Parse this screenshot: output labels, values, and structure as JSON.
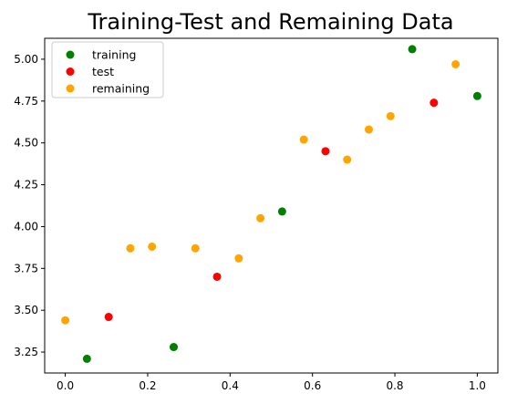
{
  "chart_data": {
    "type": "scatter",
    "title": "Training-Test and Remaining Data",
    "xlabel": "",
    "ylabel": "",
    "xlim": [
      -0.05,
      1.05
    ],
    "ylim": [
      3.125,
      5.125
    ],
    "xticks": [
      "0.0",
      "0.2",
      "0.4",
      "0.6",
      "0.8",
      "1.0"
    ],
    "yticks": [
      "3.25",
      "3.50",
      "3.75",
      "4.00",
      "4.25",
      "4.50",
      "4.75",
      "5.00"
    ],
    "grid": false,
    "legend_position": "top-left",
    "series": [
      {
        "name": "training",
        "color": "#008000",
        "points": [
          {
            "x": 0.0526,
            "y": 3.21
          },
          {
            "x": 0.2632,
            "y": 3.28
          },
          {
            "x": 0.5263,
            "y": 4.09
          },
          {
            "x": 0.8421,
            "y": 5.06
          },
          {
            "x": 1.0,
            "y": 4.78
          }
        ]
      },
      {
        "name": "test",
        "color": "#ff0000",
        "points": [
          {
            "x": 0.1053,
            "y": 3.46
          },
          {
            "x": 0.3684,
            "y": 3.7
          },
          {
            "x": 0.6316,
            "y": 4.45
          },
          {
            "x": 0.8947,
            "y": 4.74
          }
        ]
      },
      {
        "name": "remaining",
        "color": "#ffa500",
        "points": [
          {
            "x": 0.0,
            "y": 3.44
          },
          {
            "x": 0.1579,
            "y": 3.87
          },
          {
            "x": 0.2105,
            "y": 3.88
          },
          {
            "x": 0.3158,
            "y": 3.87
          },
          {
            "x": 0.4211,
            "y": 3.81
          },
          {
            "x": 0.4737,
            "y": 4.05
          },
          {
            "x": 0.5789,
            "y": 4.52
          },
          {
            "x": 0.6842,
            "y": 4.4
          },
          {
            "x": 0.7368,
            "y": 4.58
          },
          {
            "x": 0.7895,
            "y": 4.66
          },
          {
            "x": 0.9474,
            "y": 4.97
          }
        ]
      }
    ]
  }
}
